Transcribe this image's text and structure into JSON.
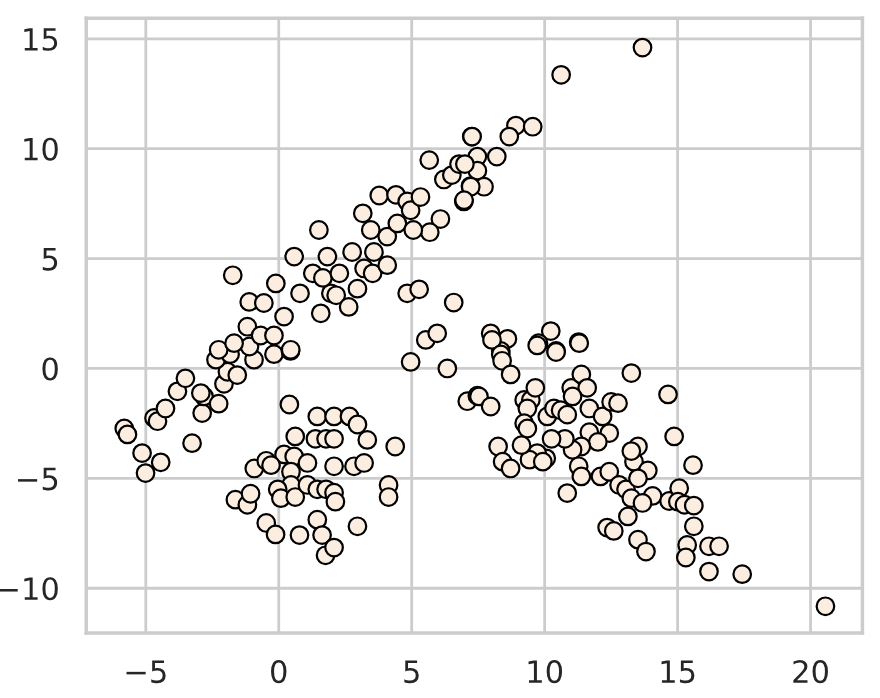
{
  "chart_data": {
    "type": "scatter",
    "marker": "circle",
    "grid": true,
    "legend": false,
    "xlim": [
      -7.24,
      21.95
    ],
    "ylim": [
      -12.04,
      15.94
    ],
    "xticks": [
      {
        "value": -5,
        "label": "−5"
      },
      0,
      5,
      10,
      15,
      20
    ],
    "yticks": [
      {
        "value": -10,
        "label": "−10"
      },
      {
        "value": -5,
        "label": "−5"
      },
      0,
      5,
      10,
      15
    ],
    "series": [
      {
        "color": "#fbeee0",
        "x": [
          -5.81,
          -5.69,
          -5.14,
          -5.01,
          -4.44,
          -4.69,
          -4.56,
          -4.26,
          -3.81,
          -3.51,
          -3.26,
          -2.88,
          -2.81,
          -2.93,
          -2.26,
          -2.06,
          -1.93,
          -1.56,
          -2.36,
          -1.83,
          -0.93,
          -0.18,
          0.44,
          -1.1,
          -1.73,
          -2.26,
          -1.68,
          -1.11,
          -0.56,
          -1.18,
          -0.68,
          -0.18,
          -0.11,
          0.58,
          0.2,
          0.45,
          0.8,
          1.28,
          1.51,
          1.58,
          1.83,
          1.96,
          1.66,
          2.28,
          2.16,
          2.63,
          2.76,
          3.16,
          3.21,
          3.46,
          3.53,
          3.78,
          4.08,
          4.08,
          4.41,
          4.46,
          4.83,
          4.83,
          5.28,
          5.53,
          5.96,
          6.58,
          4.96,
          5.33,
          5.66,
          6.08,
          6.21,
          6.51,
          6.96,
          7.26,
          7.21,
          6.78,
          5.68,
          5.06,
          3.58,
          2.96,
          13.68,
          10.62,
          8.92,
          9.55,
          8.67,
          7.27,
          8.2,
          7.47,
          7.47,
          7.0,
          7.72,
          7.22,
          6.97,
          7.97,
          8.6,
          8.35,
          10.23,
          9.77,
          10.43,
          11.28,
          4.96,
          6.34,
          7.09,
          7.47,
          0.4,
          1.45,
          2.08,
          2.66,
          2.96,
          3.33,
          4.38,
          0.62,
          1.38,
          1.78,
          2.08,
          0.2,
          0.58,
          1.08,
          2.08,
          2.83,
          3.21,
          -0.92,
          -0.47,
          -0.29,
          0.46,
          0.46,
          -0.04,
          0.08,
          0.62,
          1.08,
          1.45,
          1.78,
          2.08,
          2.13,
          -1.63,
          -1.18,
          -1.06,
          4.13,
          4.13,
          -0.47,
          -0.12,
          0.78,
          1.45,
          1.63,
          1.76,
          2.08,
          2.96,
          8.02,
          8.35,
          8.4,
          8.72,
          9.72,
          10.43,
          11.3,
          7.53,
          7.97,
          9.23,
          9.48,
          9.65,
          9.35,
          9.23,
          9.35,
          10.1,
          10.35,
          10.6,
          10.85,
          11.0,
          11.38,
          11.6,
          11.05,
          11.68,
          12.18,
          12.5,
          12.76,
          13.26,
          14.64,
          14.87,
          15.58,
          12.43,
          11.68,
          12.0,
          11.38,
          11.05,
          10.76,
          10.26,
          10.06,
          9.72,
          9.43,
          9.13,
          8.25,
          8.42,
          8.72,
          9.93,
          11.28,
          11.38,
          10.85,
          12.1,
          12.43,
          12.8,
          13.06,
          13.26,
          13.36,
          13.51,
          13.26,
          13.88,
          13.51,
          14.06,
          13.68,
          13.13,
          12.35,
          12.6,
          13.51,
          13.81,
          14.68,
          15.06,
          15.01,
          15.26,
          15.61,
          15.61,
          15.36,
          15.31,
          16.18,
          16.56,
          16.18,
          17.43,
          20.56
        ],
        "values": [
          -2.73,
          -3.0,
          -3.85,
          -4.76,
          -4.27,
          -2.25,
          -2.4,
          -1.82,
          -1.04,
          -0.45,
          -3.4,
          -2.03,
          -1.27,
          -1.12,
          -1.6,
          -0.7,
          -0.15,
          -0.3,
          0.4,
          0.65,
          0.4,
          0.65,
          0.8,
          1.0,
          4.24,
          0.85,
          1.15,
          3.03,
          2.98,
          1.9,
          1.5,
          1.5,
          3.87,
          5.09,
          2.36,
          0.85,
          3.42,
          4.33,
          6.3,
          2.51,
          5.09,
          3.42,
          4.12,
          4.33,
          3.33,
          2.8,
          5.3,
          7.06,
          4.55,
          6.3,
          4.33,
          7.87,
          4.7,
          6.0,
          7.9,
          6.6,
          7.6,
          3.42,
          3.6,
          1.3,
          1.6,
          3.0,
          7.2,
          7.8,
          9.48,
          6.8,
          8.6,
          8.8,
          7.6,
          10.55,
          8.3,
          9.3,
          6.2,
          6.3,
          5.3,
          3.63,
          14.6,
          13.36,
          11.05,
          11.0,
          10.55,
          10.55,
          9.64,
          9.64,
          9.0,
          9.3,
          8.27,
          8.27,
          7.66,
          1.6,
          1.35,
          0.8,
          1.7,
          1.15,
          0.8,
          1.2,
          0.3,
          0.0,
          -1.49,
          -1.24,
          -1.64,
          -2.18,
          -2.18,
          -2.18,
          -2.55,
          -3.25,
          -3.55,
          -3.09,
          -3.2,
          -3.2,
          -3.2,
          -3.91,
          -4.0,
          -4.3,
          -4.45,
          -4.45,
          -4.3,
          -4.55,
          -4.2,
          -4.4,
          -4.7,
          -5.3,
          -5.5,
          -5.9,
          -5.85,
          -5.3,
          -5.5,
          -5.5,
          -5.65,
          -6.06,
          -5.97,
          -6.2,
          -5.7,
          -5.3,
          -5.85,
          -7.03,
          -7.55,
          -7.58,
          -6.88,
          -7.58,
          -8.5,
          -8.15,
          -7.18,
          1.3,
          0.64,
          0.35,
          -0.27,
          1.05,
          0.75,
          1.15,
          -1.27,
          -1.73,
          -1.43,
          -1.43,
          -0.88,
          -1.82,
          -2.49,
          -2.73,
          -2.18,
          -1.82,
          -1.9,
          -2.1,
          -0.88,
          -0.27,
          -0.88,
          -1.27,
          -1.82,
          -2.18,
          -1.52,
          -1.58,
          -0.21,
          -1.18,
          -3.09,
          -4.4,
          -2.94,
          -2.9,
          -3.34,
          -3.55,
          -3.7,
          -3.2,
          -3.2,
          -4.09,
          -3.85,
          -4.15,
          -3.49,
          -3.55,
          -4.24,
          -4.55,
          -4.24,
          -4.45,
          -4.91,
          -5.67,
          -4.91,
          -4.7,
          -5.3,
          -5.5,
          -5.9,
          -4.24,
          -3.55,
          -3.76,
          -4.64,
          -5.0,
          -5.8,
          -6.12,
          -6.73,
          -7.24,
          -7.39,
          -7.79,
          -8.33,
          -6.03,
          -5.45,
          -6.06,
          -6.2,
          -6.24,
          -7.18,
          -8.03,
          -8.6,
          -8.09,
          -8.09,
          -9.24,
          -9.36,
          -10.82
        ]
      }
    ]
  }
}
